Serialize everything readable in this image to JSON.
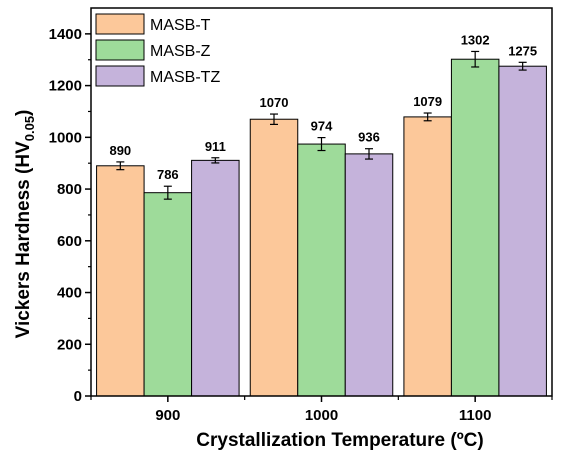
{
  "chart_data": {
    "type": "bar",
    "categories": [
      "900",
      "1000",
      "1100"
    ],
    "series": [
      {
        "name": "MASB-T",
        "color": "#FCC89A",
        "values": [
          890,
          1070,
          1079
        ],
        "errors": [
          15,
          20,
          15
        ],
        "labels": [
          "890",
          "1070",
          "1079"
        ]
      },
      {
        "name": "MASB-Z",
        "color": "#9EDB9A",
        "values": [
          786,
          974,
          1302
        ],
        "errors": [
          25,
          25,
          30
        ],
        "labels": [
          "786",
          "974",
          "1302"
        ]
      },
      {
        "name": "MASB-TZ",
        "color": "#C5B3DB",
        "values": [
          911,
          936,
          1275
        ],
        "errors": [
          10,
          20,
          15
        ],
        "labels": [
          "911",
          "936",
          "1275"
        ]
      }
    ],
    "xlabel": "Crystallization Temperature (ºC)",
    "ylabel_main": "Vickers Hardness (HV",
    "ylabel_sub": "0.05",
    "ylabel_close": ")",
    "ylim": [
      0,
      1500
    ],
    "yticks": [
      "0",
      "200",
      "400",
      "600",
      "800",
      "1000",
      "1200",
      "1400"
    ],
    "ytick_values": [
      0,
      200,
      400,
      600,
      800,
      1000,
      1200,
      1400
    ],
    "legend_position": "top-left",
    "grid": false
  }
}
